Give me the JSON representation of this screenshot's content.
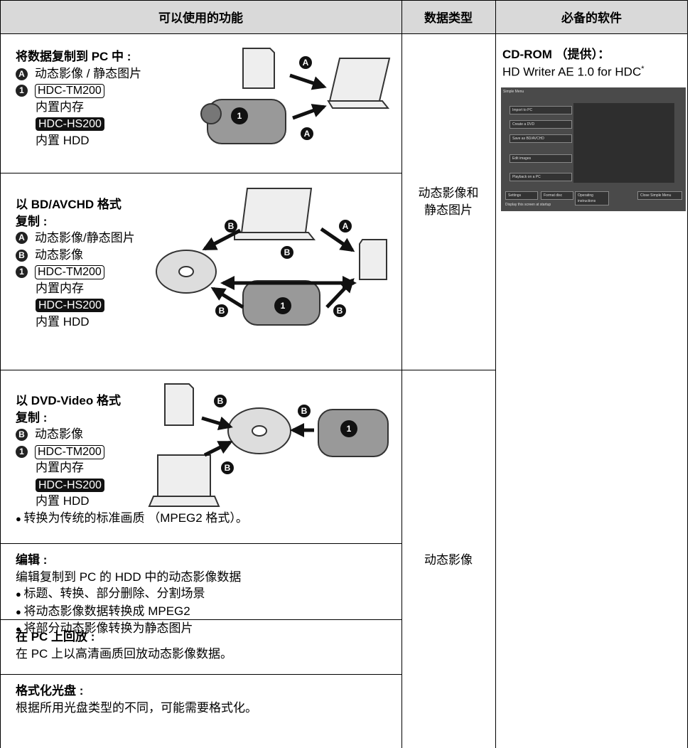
{
  "header": {
    "columns": [
      "可以使用的功能",
      "数据类型",
      "必备的软件"
    ]
  },
  "rows": [
    {
      "title": [
        "将数据复制到 PC 中 :"
      ],
      "lines": [
        {
          "marker": "A",
          "text": "动态影像 / 静态图片"
        },
        {
          "marker": "1",
          "badge": "HDC-TM200"
        },
        {
          "text": "内置内存"
        },
        {
          "badge_dark": "HDC-HS200"
        },
        {
          "text": "内置 HDD"
        }
      ],
      "diagram_labels": [
        "A",
        "1",
        "A"
      ]
    },
    {
      "title": [
        "以 BD/AVCHD 格式",
        "复制 :"
      ],
      "lines": [
        {
          "marker": "A",
          "text": "动态影像/静态图片"
        },
        {
          "marker": "B",
          "text": "动态影像"
        },
        {
          "marker": "1",
          "badge": "HDC-TM200"
        },
        {
          "text": "内置内存"
        },
        {
          "badge_dark": "HDC-HS200"
        },
        {
          "text": "内置 HDD"
        }
      ],
      "diagram_labels": [
        "B",
        "A",
        "B",
        "B",
        "1",
        "B"
      ]
    },
    {
      "title": [
        "以 DVD-Video 格式",
        "复制 :"
      ],
      "lines": [
        {
          "marker": "B",
          "text": "动态影像"
        },
        {
          "marker": "1",
          "badge": "HDC-TM200"
        },
        {
          "text": "内置内存"
        },
        {
          "badge_dark": "HDC-HS200"
        },
        {
          "text": "内置 HDD"
        }
      ],
      "bullets": [
        "转换为传统的标准画质 （MPEG2 格式）。"
      ],
      "diagram_labels": [
        "B",
        "B",
        "1",
        "B"
      ]
    },
    {
      "title": [
        "编辑 :"
      ],
      "description": "编辑复制到 PC 的 HDD 中的动态影像数据",
      "bullets": [
        "标题、转换、部分删除、分割场景",
        "将动态影像数据转换成 MPEG2",
        "将部分动态影像转换为静态图片"
      ]
    },
    {
      "title": [
        "在 PC 上回放 :"
      ],
      "description": "在 PC 上以高清画质回放动态影像数据。"
    },
    {
      "title": [
        "格式化光盘 :"
      ],
      "description": "根据所用光盘类型的不同，可能需要格式化。"
    }
  ],
  "data_types": [
    [
      "动态影像和",
      "静态图片"
    ],
    [
      "动态影像"
    ]
  ],
  "software": {
    "title": "CD-ROM （提供）：",
    "name": "HD Writer AE 1.0 for HDC",
    "footnote_mark": "*",
    "screenshot": {
      "title": "Simple Menu",
      "buttons": [
        "Import to PC",
        "Create a DVD",
        "Save as BD/AVCHD",
        "Edit images",
        "Playback on a PC"
      ],
      "bottom_buttons": [
        "Settings",
        "Format disc",
        "Operating instructions",
        "Close Simple Menu"
      ],
      "checkbox": "Display this screen at startup"
    }
  }
}
